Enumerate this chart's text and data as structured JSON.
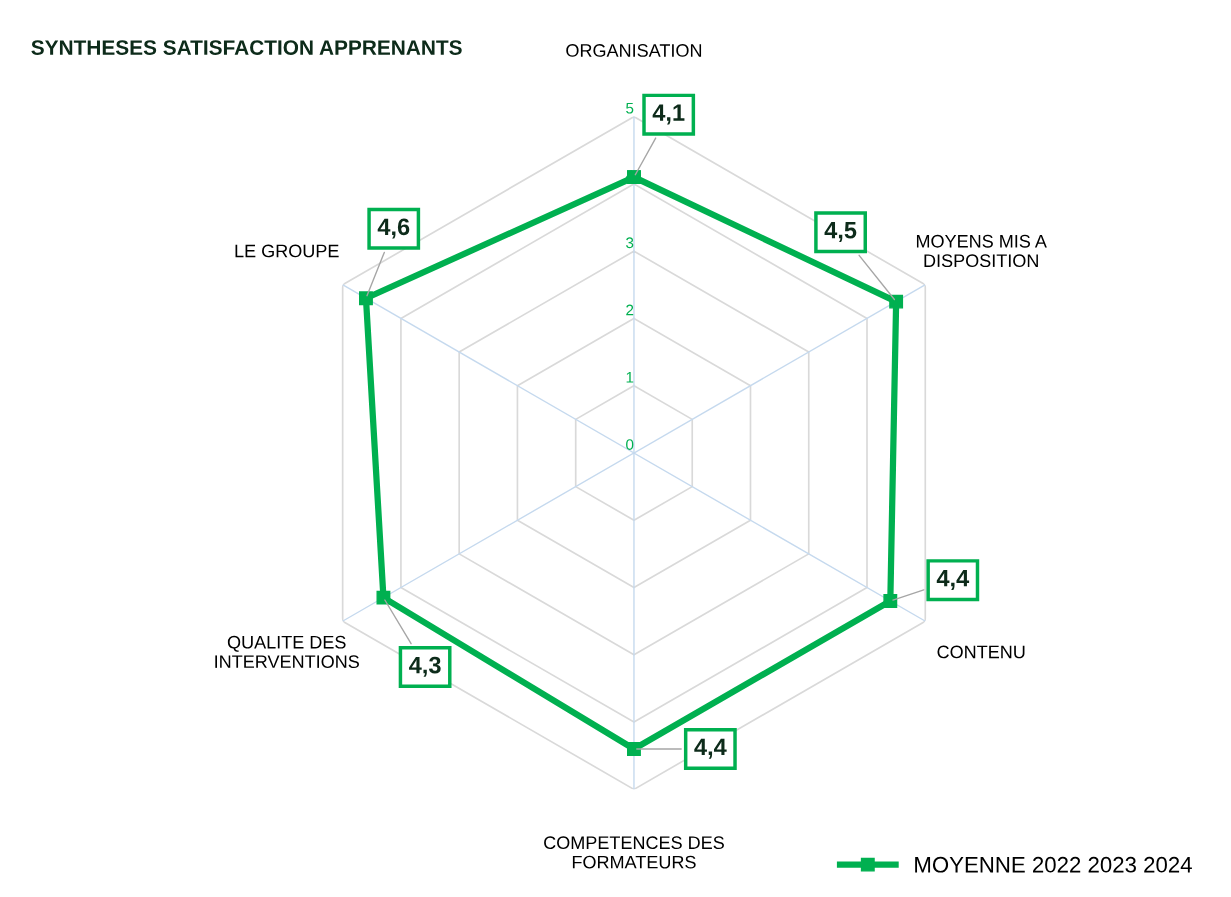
{
  "chart_data": {
    "type": "radar",
    "title": "SYNTHESES SATISFACTION APPRENANTS",
    "categories": [
      "ORGANISATION",
      "MOYENS MIS A\nDISPOSITION",
      "CONTENU",
      "COMPETENCES DES\nFORMATEURS",
      "QUALITE DES\nINTERVENTIONS",
      "LE GROUPE"
    ],
    "series": [
      {
        "name": "MOYENNE 2022 2023 2024",
        "color": "#00b050",
        "values": [
          4.1,
          4.5,
          4.4,
          4.4,
          4.3,
          4.6
        ],
        "value_labels": [
          "4,1",
          "4,5",
          "4,4",
          "4,4",
          "4,3",
          "4,6"
        ]
      }
    ],
    "ylim": [
      0,
      5
    ],
    "yticks": [
      0,
      1,
      2,
      3,
      4,
      5
    ],
    "grid": true,
    "legend": "bottom right",
    "marker": "square",
    "line_style": "solid"
  }
}
